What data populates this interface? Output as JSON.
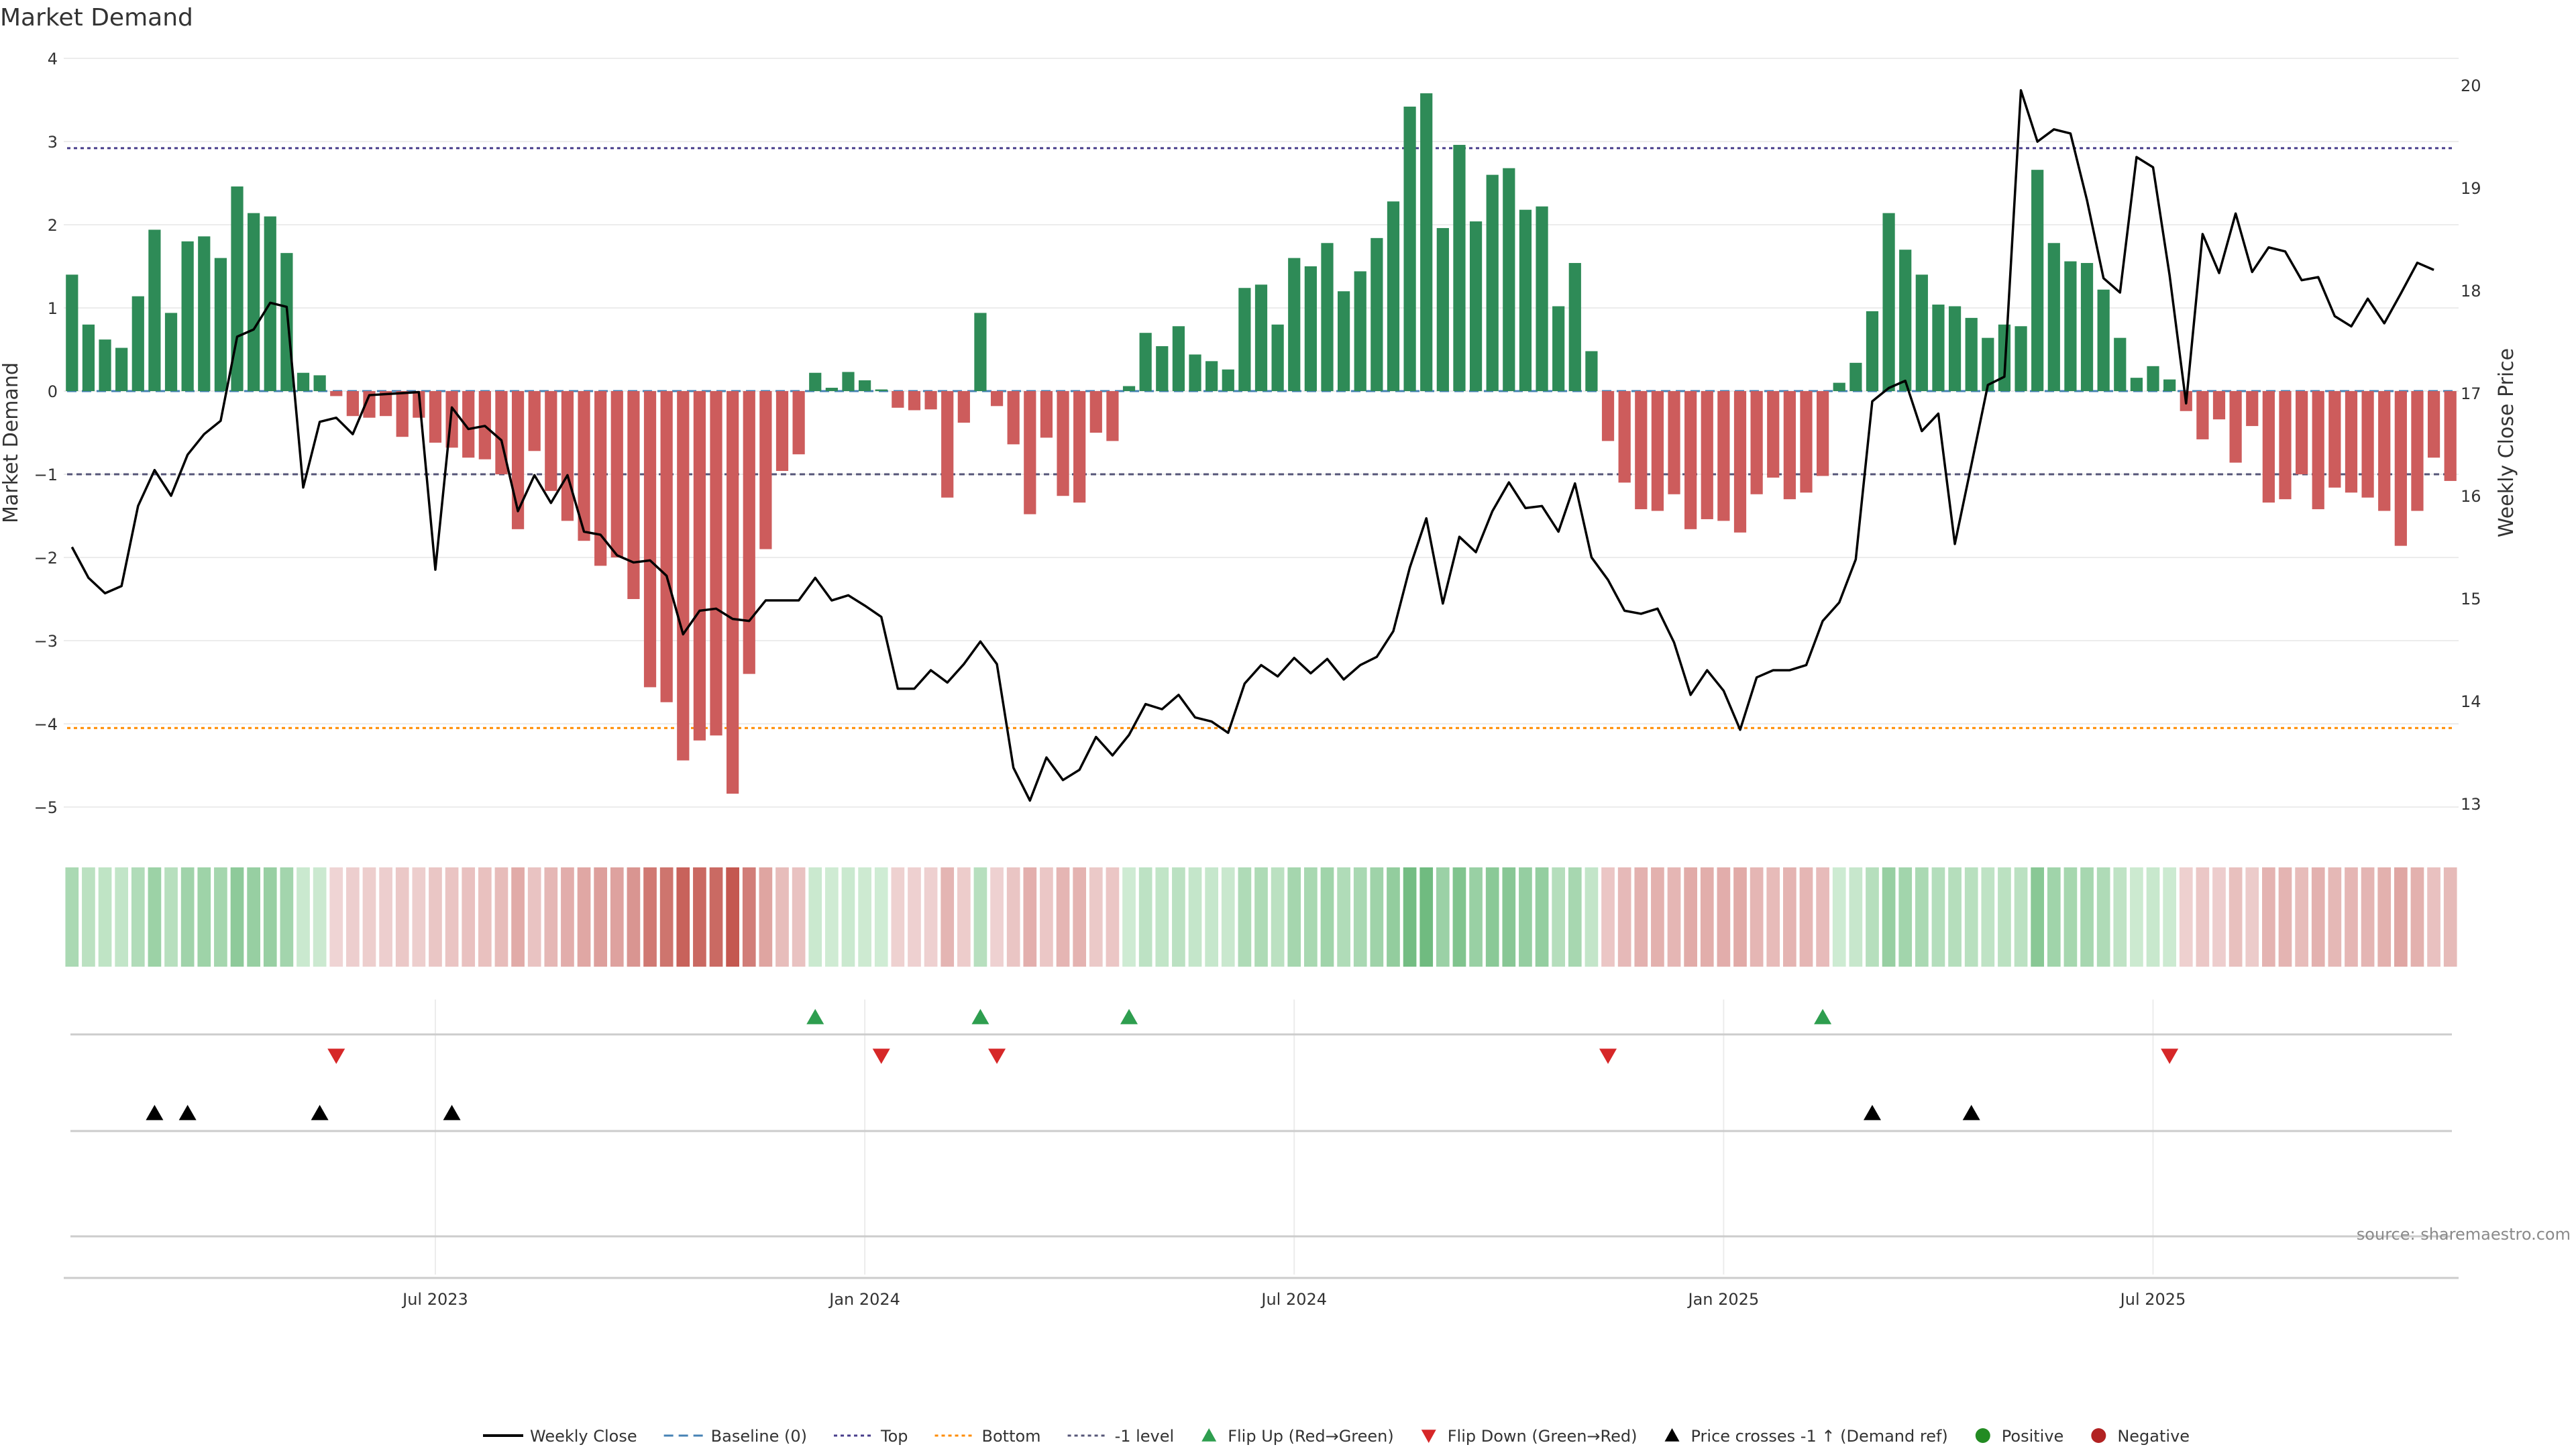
{
  "title": "Market Demand",
  "source_note": "source: sharemaestro.com",
  "colors": {
    "positive": "#2e8b57",
    "negative": "#cd5c5c",
    "price": "#000000",
    "top_line": "#483d8b",
    "bottom_line": "#ff8c00",
    "minus1_line": "#555577",
    "baseline": "#4682b4",
    "flip_up": "#2e9e4f",
    "flip_down": "#d62728",
    "cross": "#000000",
    "legend_positive": "#228b22",
    "legend_negative": "#b22222"
  },
  "chart_data": {
    "type": "bar",
    "title": "Market Demand",
    "ylabel": "Market Demand",
    "y2label": "Weekly Close Price",
    "ylim": [
      -5,
      4
    ],
    "y2lim": [
      13,
      20.2
    ],
    "yticks": [
      "4",
      "3",
      "2",
      "1",
      "0",
      "−1",
      "−2",
      "−3",
      "−4",
      "−5"
    ],
    "yticks_values": [
      4,
      3,
      2,
      1,
      0,
      -1,
      -2,
      -3,
      -4,
      -5
    ],
    "y2ticks": [
      "20",
      "19",
      "18",
      "17",
      "16",
      "15",
      "14",
      "13"
    ],
    "y2ticks_values": [
      20,
      19,
      18,
      17,
      16,
      15,
      14,
      13
    ],
    "x_ticks": [
      {
        "label": "Jul 2023",
        "index": 22
      },
      {
        "label": "Jan 2024",
        "index": 48
      },
      {
        "label": "Jul 2024",
        "index": 74
      },
      {
        "label": "Jan 2025",
        "index": 100
      },
      {
        "label": "Jul 2025",
        "index": 126
      }
    ],
    "reference_lines": {
      "top": 2.92,
      "bottom": -4.05,
      "minus1": -1.0,
      "baseline": 0
    },
    "demand": [
      1.4,
      0.8,
      0.62,
      0.52,
      1.14,
      1.94,
      0.94,
      1.8,
      1.86,
      1.6,
      2.46,
      2.14,
      2.1,
      1.66,
      0.22,
      0.19,
      -0.06,
      -0.3,
      -0.32,
      -0.3,
      -0.55,
      -0.32,
      -0.62,
      -0.68,
      -0.8,
      -0.82,
      -1.0,
      -1.66,
      -0.72,
      -1.2,
      -1.56,
      -1.8,
      -2.1,
      -2.0,
      -2.5,
      -3.56,
      -3.74,
      -4.44,
      -4.2,
      -4.14,
      -4.84,
      -3.4,
      -1.9,
      -0.96,
      -0.76,
      0.22,
      0.04,
      0.23,
      0.13,
      0.02,
      -0.2,
      -0.23,
      -0.22,
      -1.28,
      -0.38,
      0.94,
      -0.18,
      -0.64,
      -1.48,
      -0.56,
      -1.26,
      -1.34,
      -0.5,
      -0.6,
      0.06,
      0.7,
      0.54,
      0.78,
      0.44,
      0.36,
      0.26,
      1.24,
      1.28,
      0.8,
      1.6,
      1.5,
      1.78,
      1.2,
      1.44,
      1.84,
      2.28,
      3.42,
      3.58,
      1.96,
      2.96,
      2.04,
      2.6,
      2.68,
      2.18,
      2.22,
      1.02,
      1.54,
      0.48,
      -0.6,
      -1.1,
      -1.42,
      -1.44,
      -1.24,
      -1.66,
      -1.54,
      -1.56,
      -1.7,
      -1.24,
      -1.04,
      -1.3,
      -1.22,
      -1.02,
      0.1,
      0.34,
      0.96,
      2.14,
      1.7,
      1.4,
      1.04,
      1.02,
      0.88,
      0.64,
      0.8,
      0.78,
      2.66,
      1.78,
      1.56,
      1.54,
      1.22,
      0.64,
      0.16,
      0.3,
      0.14,
      -0.24,
      -0.58,
      -0.34,
      -0.86,
      -0.42,
      -1.34,
      -1.3,
      -1.0,
      -1.42,
      -1.16,
      -1.22,
      -1.28,
      -1.44,
      -1.86,
      -1.44,
      -0.8,
      -1.08
    ],
    "price": [
      15.5,
      15.2,
      15.05,
      15.12,
      15.9,
      16.25,
      16.0,
      16.4,
      16.6,
      16.73,
      17.55,
      17.62,
      17.88,
      17.84,
      16.08,
      16.72,
      16.76,
      16.6,
      16.98,
      16.99,
      17.0,
      17.01,
      15.28,
      16.86,
      16.65,
      16.68,
      16.54,
      15.85,
      16.2,
      15.93,
      16.2,
      15.65,
      15.62,
      15.42,
      15.35,
      15.37,
      15.22,
      14.65,
      14.88,
      14.9,
      14.8,
      14.78,
      14.98,
      14.98,
      14.98,
      15.2,
      14.98,
      15.03,
      14.93,
      14.82,
      14.12,
      14.12,
      14.3,
      14.18,
      14.36,
      14.58,
      14.36,
      13.35,
      13.03,
      13.45,
      13.23,
      13.33,
      13.65,
      13.47,
      13.67,
      13.97,
      13.92,
      14.06,
      13.84,
      13.8,
      13.69,
      14.17,
      14.35,
      14.24,
      14.42,
      14.27,
      14.41,
      14.21,
      14.35,
      14.43,
      14.68,
      15.3,
      15.78,
      14.95,
      15.6,
      15.45,
      15.85,
      16.13,
      15.88,
      15.9,
      15.65,
      16.12,
      15.4,
      15.18,
      14.88,
      14.85,
      14.9,
      14.57,
      14.06,
      14.3,
      14.1,
      13.72,
      14.23,
      14.3,
      14.3,
      14.35,
      14.78,
      14.96,
      15.38,
      16.92,
      17.05,
      17.12,
      16.63,
      16.8,
      15.53,
      16.3,
      17.08,
      17.16,
      19.95,
      19.45,
      19.57,
      19.53,
      18.88,
      18.12,
      17.98,
      19.3,
      19.2,
      18.15,
      16.9,
      18.55,
      18.17,
      18.75,
      18.18,
      18.42,
      18.38,
      18.1,
      18.13,
      17.75,
      17.65,
      17.92,
      17.68,
      17.97,
      18.27,
      18.2
    ],
    "flip_up": [
      45,
      55,
      64,
      106
    ],
    "flip_down": [
      16,
      49,
      56,
      93,
      127
    ],
    "price_crosses": [
      5,
      7,
      15,
      23,
      109,
      115
    ]
  },
  "legend": [
    {
      "label": "Weekly Close",
      "marker": "line",
      "color": "#000000"
    },
    {
      "label": "Baseline (0)",
      "marker": "dash",
      "color": "#4682b4"
    },
    {
      "label": "Top",
      "marker": "dot",
      "color": "#483d8b"
    },
    {
      "label": "Bottom",
      "marker": "dot",
      "color": "#ff8c00"
    },
    {
      "label": "-1 level",
      "marker": "dot",
      "color": "#555577"
    },
    {
      "label": "Flip Up (Red→Green)",
      "marker": "tri-up",
      "color": "#2e9e4f"
    },
    {
      "label": "Flip Down (Green→Red)",
      "marker": "tri-down",
      "color": "#d62728"
    },
    {
      "label": "Price crosses -1 ↑ (Demand ref)",
      "marker": "tri-up",
      "color": "#000000"
    },
    {
      "label": "Positive",
      "marker": "circle",
      "color": "#228b22"
    },
    {
      "label": "Negative",
      "marker": "circle",
      "color": "#b22222"
    }
  ]
}
